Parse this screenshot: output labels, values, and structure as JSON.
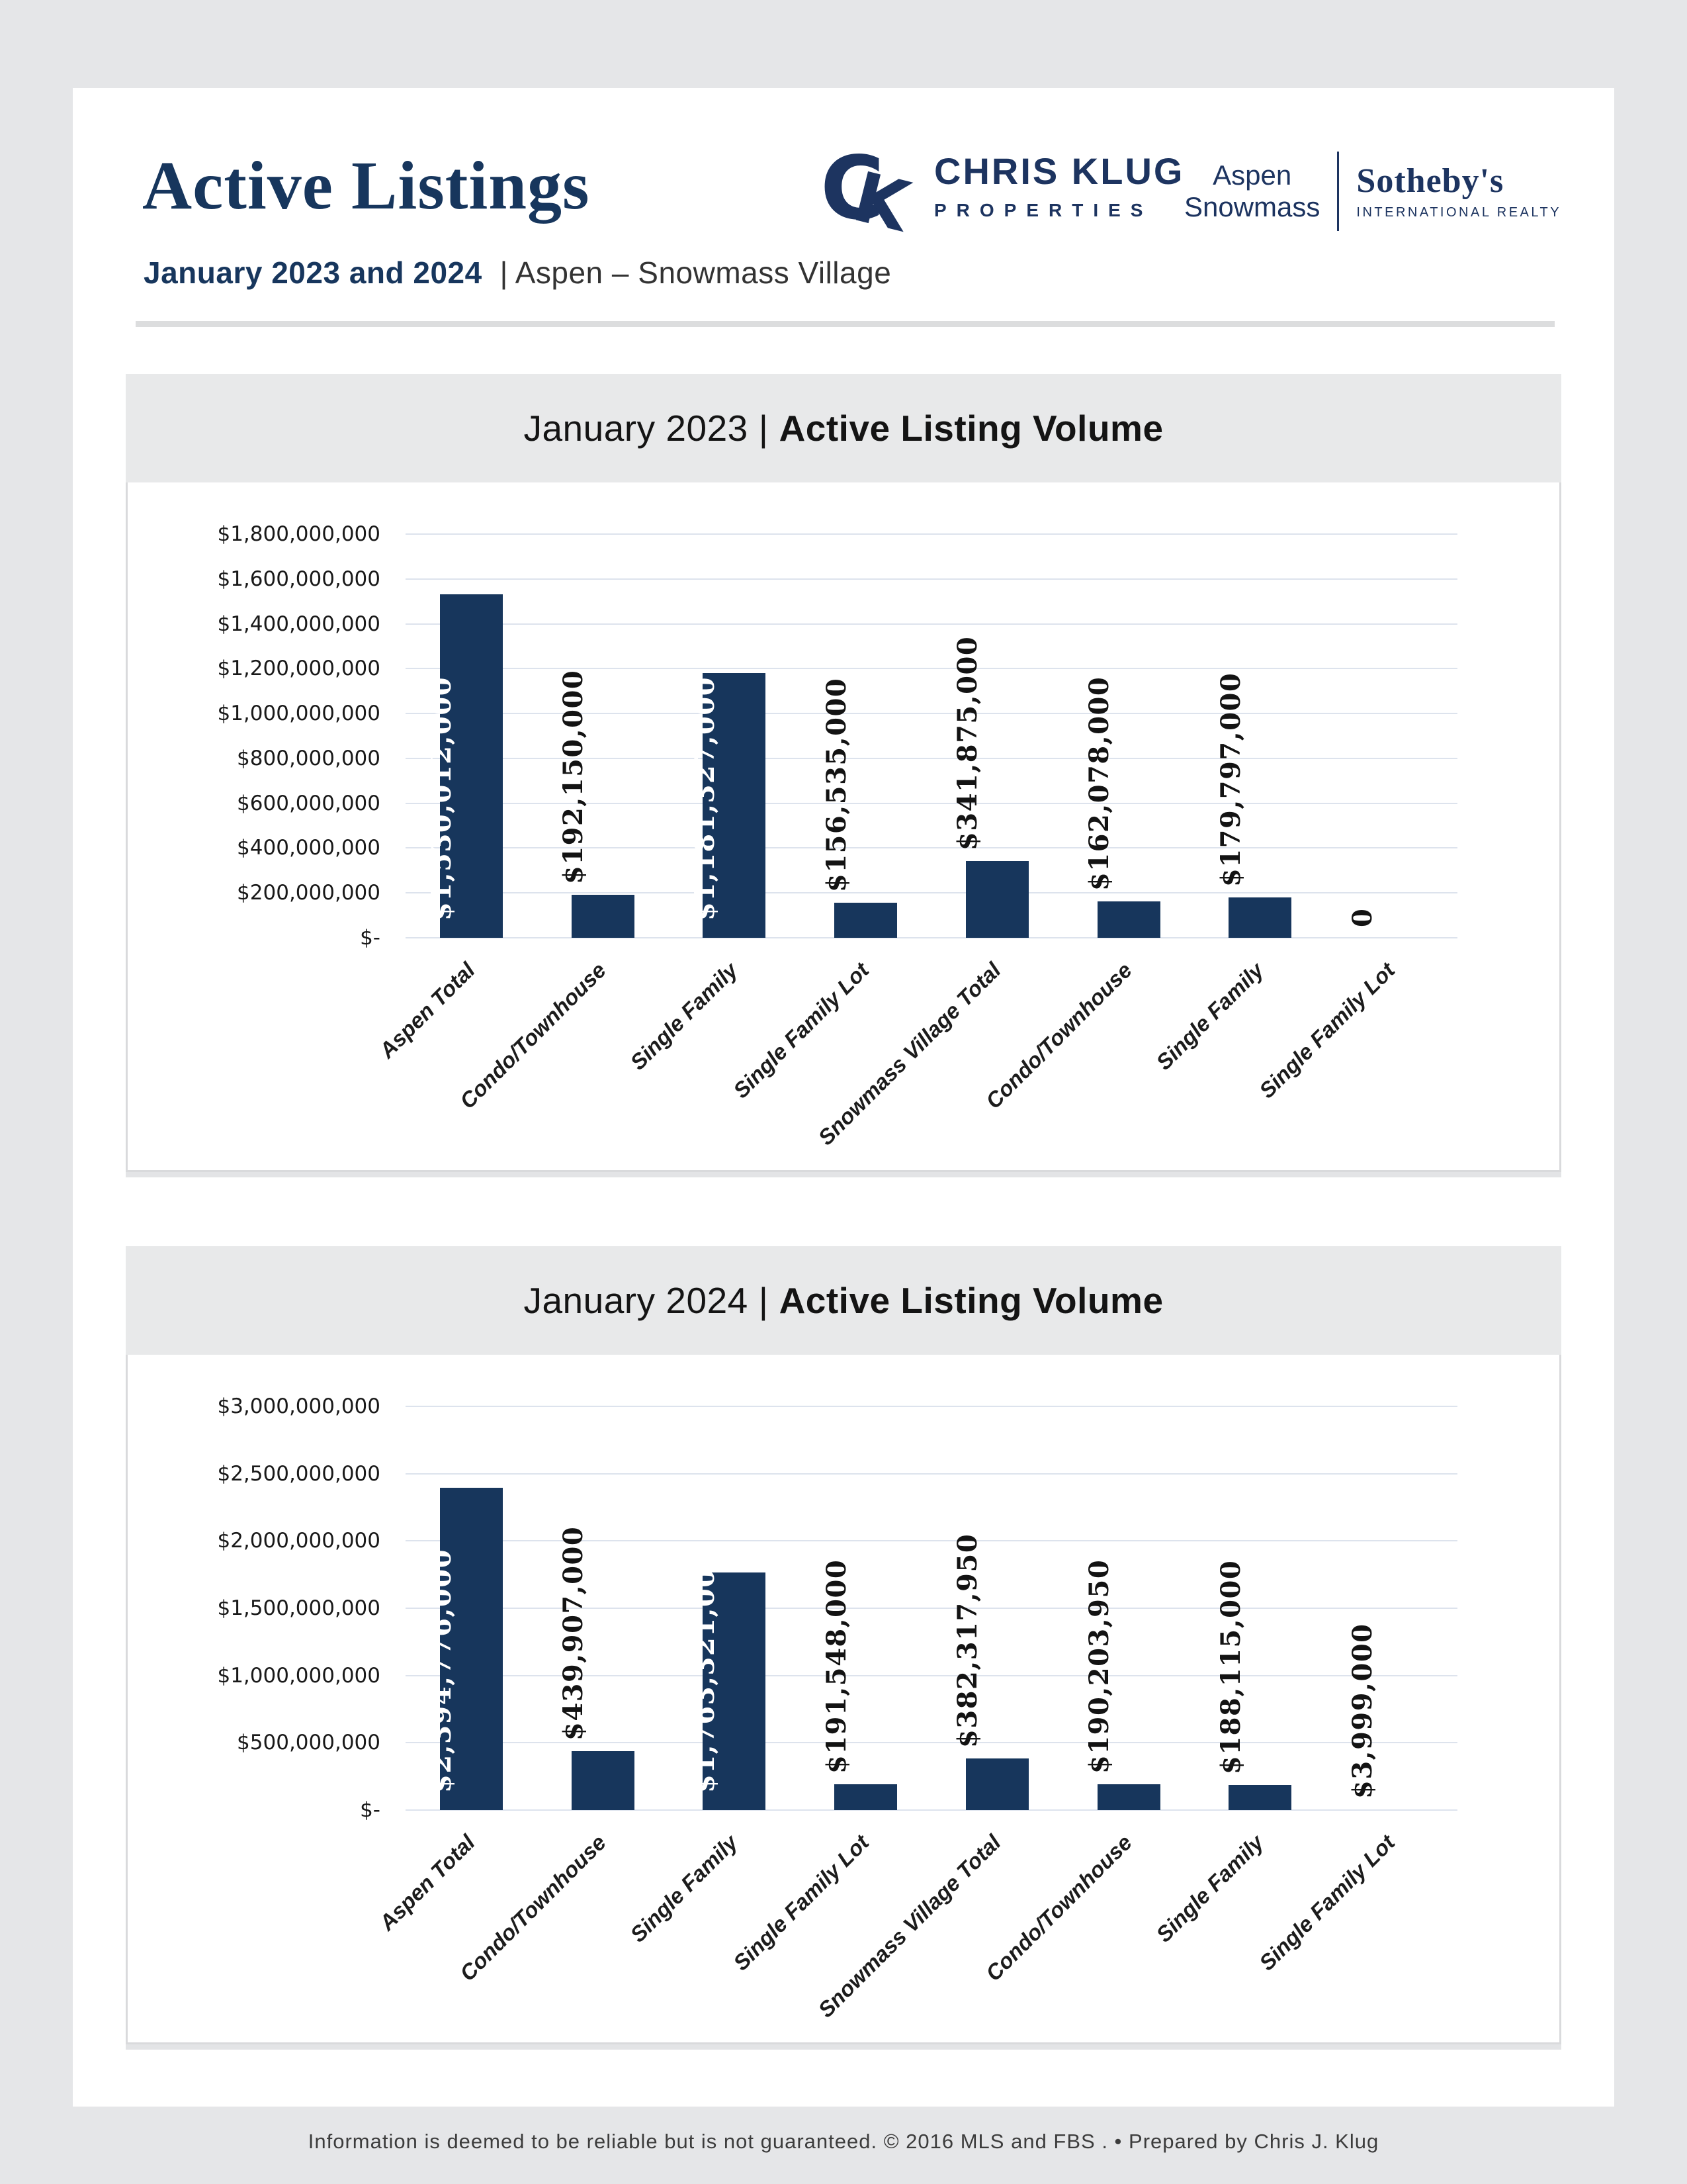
{
  "header": {
    "title": "Active Listings",
    "subtitle_bold": "January 2023 and 2024",
    "subtitle_rest": "| Aspen – Snowmass Village",
    "brand": {
      "monogram_c": "C",
      "monogram_k": "K",
      "name": "CHRIS KLUG",
      "name_sub": "PROPERTIES"
    },
    "affiliate": {
      "region_line1": "Aspen",
      "region_line2": "Snowmass",
      "brand_name": "Sotheby's",
      "brand_sub": "INTERNATIONAL REALTY"
    }
  },
  "colors": {
    "navy": "#17365c",
    "page_background": "#e5e6e8",
    "section_header_background": "#e8e9ea",
    "gridline": "#dde3ed",
    "value_label_dark": "#131313",
    "value_label_light": "#ffffff",
    "box_border": "#d9dadc"
  },
  "chart_data": [
    {
      "type": "bar",
      "title": {
        "prefix": "January 2023",
        "separator": "|",
        "emphasis": "Active Listing Volume"
      },
      "categories": [
        "Aspen Total",
        "Condo/Townhouse",
        "Single Family",
        "Single Family Lot",
        "Snowmass Village Total",
        "Condo/Townhouse",
        "Single Family",
        "Single Family Lot"
      ],
      "values": [
        1530012000,
        192150000,
        1181327000,
        156535000,
        341875000,
        162078000,
        179797000,
        0
      ],
      "value_labels": [
        "$1,530,012,000",
        "$192,150,000",
        "$1,181,327,000",
        "$156,535,000",
        "$341,875,000",
        "$162,078,000",
        "$179,797,000",
        "0"
      ],
      "label_inside": [
        true,
        false,
        true,
        false,
        false,
        false,
        false,
        false
      ],
      "ylim": [
        0,
        1800000000
      ],
      "ytick_step": 200000000,
      "ytick_labels": [
        "$1,800,000,000",
        "$1,600,000,000",
        "$1,400,000,000",
        "$1,200,000,000",
        "$1,000,000,000",
        "$800,000,000",
        "$600,000,000",
        "$400,000,000",
        "$200,000,000",
        "$-"
      ],
      "xlabel": "",
      "ylabel": "",
      "grid": "on",
      "legend": "none",
      "bar_color": "#17365c"
    },
    {
      "type": "bar",
      "title": {
        "prefix": "January 2024",
        "separator": "|",
        "emphasis": "Active Listing Volume"
      },
      "categories": [
        "Aspen Total",
        "Condo/Townhouse",
        "Single Family",
        "Single Family Lot",
        "Snowmass Village Total",
        "Condo/Townhouse",
        "Single Family",
        "Single Family Lot"
      ],
      "values": [
        2394776000,
        439907000,
        1763321000,
        191548000,
        382317950,
        190203950,
        188115000,
        3999000
      ],
      "value_labels": [
        "$2,394,776,000",
        "$439,907,000",
        "$1,763,321,000",
        "$191,548,000",
        "$382,317,950",
        "$190,203,950",
        "$188,115,000",
        "$3,999,000"
      ],
      "label_inside": [
        true,
        false,
        true,
        false,
        false,
        false,
        false,
        false
      ],
      "ylim": [
        0,
        3000000000
      ],
      "ytick_step": 500000000,
      "ytick_labels": [
        "$3,000,000,000",
        "$2,500,000,000",
        "$2,000,000,000",
        "$1,500,000,000",
        "$1,000,000,000",
        "$500,000,000",
        "$-"
      ],
      "xlabel": "",
      "ylabel": "",
      "grid": "on",
      "legend": "none",
      "bar_color": "#17365c"
    }
  ],
  "footer": {
    "text": "Information is deemed to be reliable but is not guaranteed. © 2016 MLS and FBS . • Prepared by Chris J. Klug"
  }
}
